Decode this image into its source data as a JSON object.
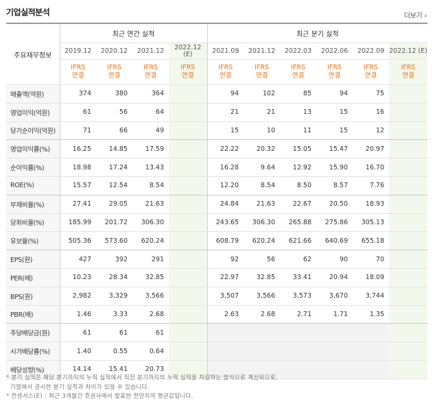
{
  "title": "기업실적분석",
  "more": "더보기 ›",
  "corner_label": "주요재무정보",
  "groups": {
    "annual": "최근 연간 실적",
    "quarter": "최근 분기 실적"
  },
  "columns": [
    {
      "period": "2019.12",
      "std1": "IFRS",
      "std2": "연결"
    },
    {
      "period": "2020.12",
      "std1": "IFRS",
      "std2": "연결"
    },
    {
      "period": "2021.12",
      "std1": "IFRS",
      "std2": "연결"
    },
    {
      "period": "2022.12",
      "period2": "(E)",
      "std1": "IFRS",
      "std2": "연결"
    },
    {
      "period": "2021.09",
      "std1": "IFRS",
      "std2": "연결"
    },
    {
      "period": "2021.12",
      "std1": "IFRS",
      "std2": "연결"
    },
    {
      "period": "2022.03",
      "std1": "IFRS",
      "std2": "연결"
    },
    {
      "period": "2022.06",
      "std1": "IFRS",
      "std2": "연결"
    },
    {
      "period": "2022.09",
      "std1": "IFRS",
      "std2": "연결"
    },
    {
      "period": "2022.12 (E)",
      "std1": "IFRS",
      "std2": "연결"
    }
  ],
  "rows": [
    {
      "label": "매출액(억원)",
      "values": [
        "374",
        "380",
        "364",
        "",
        "94",
        "102",
        "85",
        "94",
        "75",
        ""
      ]
    },
    {
      "label": "영업이익(억원)",
      "values": [
        "61",
        "56",
        "64",
        "",
        "21",
        "21",
        "13",
        "15",
        "16",
        ""
      ]
    },
    {
      "label": "당기순이익(억원)",
      "values": [
        "71",
        "66",
        "49",
        "",
        "15",
        "10",
        "11",
        "15",
        "12",
        ""
      ]
    },
    {
      "label": "영업이익률(%)",
      "values": [
        "16.25",
        "14.85",
        "17.59",
        "",
        "22.22",
        "20.32",
        "15.05",
        "15.47",
        "20.97",
        ""
      ]
    },
    {
      "label": "순이익률(%)",
      "values": [
        "18.98",
        "17.24",
        "13.43",
        "",
        "16.28",
        "9.64",
        "12.92",
        "15.90",
        "16.70",
        ""
      ]
    },
    {
      "label": "ROE(%)",
      "values": [
        "15.57",
        "12.54",
        "8.54",
        "",
        "12.20",
        "8.54",
        "8.50",
        "8.57",
        "7.76",
        ""
      ]
    },
    {
      "label": "부채비율(%)",
      "values": [
        "27.41",
        "29.05",
        "21.63",
        "",
        "24.84",
        "21.63",
        "22.67",
        "20.50",
        "18.93",
        ""
      ]
    },
    {
      "label": "당좌비율(%)",
      "values": [
        "185.99",
        "201.72",
        "306.30",
        "",
        "243.65",
        "306.30",
        "265.88",
        "275.86",
        "305.13",
        ""
      ]
    },
    {
      "label": "유보율(%)",
      "values": [
        "505.36",
        "573.60",
        "620.24",
        "",
        "608.79",
        "620.24",
        "621.66",
        "640.69",
        "655.18",
        ""
      ]
    },
    {
      "label": "EPS(원)",
      "values": [
        "427",
        "392",
        "291",
        "",
        "92",
        "56",
        "62",
        "90",
        "70",
        ""
      ]
    },
    {
      "label": "PER(배)",
      "values": [
        "10.23",
        "28.34",
        "32.85",
        "",
        "22.97",
        "32.85",
        "33.41",
        "20.94",
        "18.09",
        ""
      ]
    },
    {
      "label": "BPS(원)",
      "values": [
        "2,982",
        "3,329",
        "3,566",
        "",
        "3,507",
        "3,566",
        "3,573",
        "3,670",
        "3,744",
        ""
      ]
    },
    {
      "label": "PBR(배)",
      "values": [
        "1.46",
        "3.33",
        "2.68",
        "",
        "2.63",
        "2.68",
        "2.71",
        "1.71",
        "1.35",
        ""
      ]
    },
    {
      "label": "주당배당금(원)",
      "values": [
        "61",
        "61",
        "61",
        "",
        "",
        "",
        "",
        "",
        "",
        ""
      ]
    },
    {
      "label": "시가배당률(%)",
      "values": [
        "1.40",
        "0.55",
        "0.64",
        "",
        "",
        "",
        "",
        "",
        "",
        ""
      ]
    },
    {
      "label": "배당성향(%)",
      "values": [
        "14.14",
        "15.41",
        "20.73",
        "",
        "",
        "",
        "",
        "",
        "",
        ""
      ]
    }
  ],
  "notes": [
    "* 분기 실적은 해당 분기까지의 누적 실적에서 직전 분기까지의 누적 실적을 차감하는 방식으로 계산되므로,",
    "  기업에서 공시한 분기 실적과 차이가 있을 수 있습니다.",
    "* 컨센서스(E) : 최근 3개월간 증권사에서 발표한 전망치의 평균값입니다."
  ]
}
